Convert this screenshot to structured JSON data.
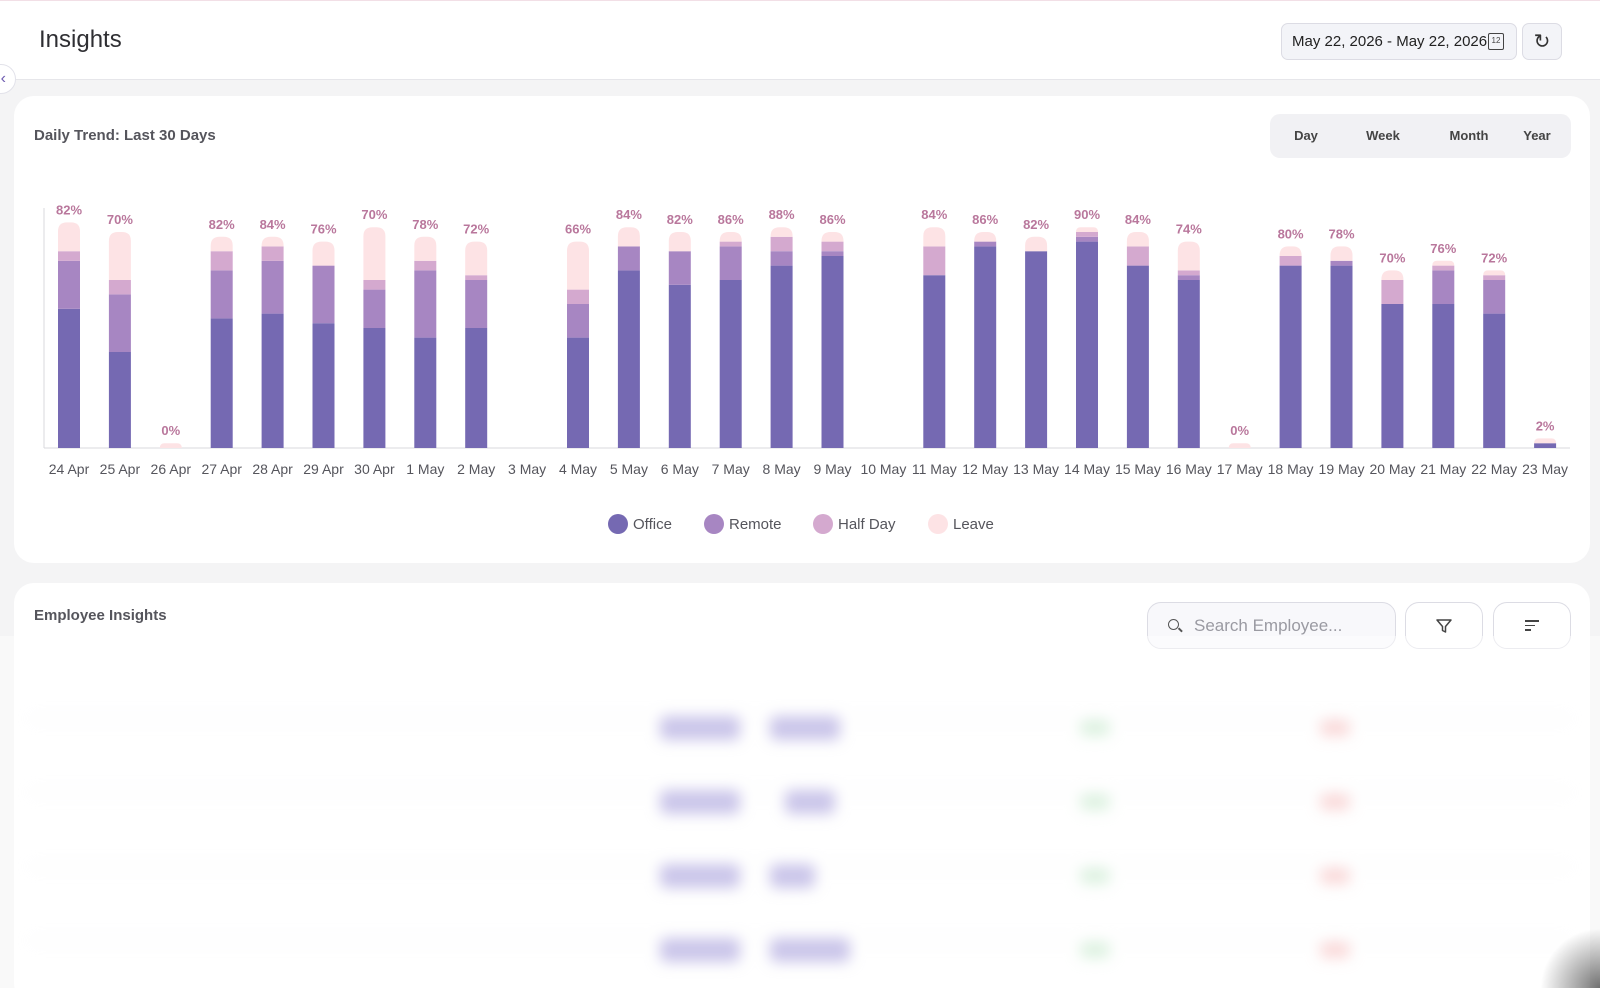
{
  "header": {
    "title": "Insights",
    "date_range": "May 22, 2026 - May 22, 2026",
    "calendar_day": "12"
  },
  "trend": {
    "title": "Daily Trend: Last 30 Days",
    "tabs": [
      {
        "label": "Day",
        "active": true
      },
      {
        "label": "Week",
        "active": false
      },
      {
        "label": "Month",
        "active": false
      },
      {
        "label": "Year",
        "active": false
      }
    ]
  },
  "employee": {
    "title": "Employee Insights",
    "search_placeholder": "Search Employee..."
  },
  "icons": {
    "collapse": "chevron-left-icon",
    "calendar": "calendar-icon",
    "refresh": "refresh-icon",
    "search": "search-icon",
    "filter": "filter-icon",
    "sort": "sort-icon"
  },
  "colors": {
    "office": "#7569b2",
    "remote": "#a786c2",
    "half_day": "#d4a9cf",
    "leave": "#fde3e5",
    "label": "#b9779c",
    "accent": "#6d5bb0"
  },
  "chart_data": {
    "type": "bar",
    "stacked": true,
    "categories": [
      "24 Apr",
      "25 Apr",
      "26 Apr",
      "27 Apr",
      "28 Apr",
      "29 Apr",
      "30 Apr",
      "1 May",
      "2 May",
      "3 May",
      "4 May",
      "5 May",
      "6 May",
      "7 May",
      "8 May",
      "9 May",
      "10 May",
      "11 May",
      "12 May",
      "13 May",
      "14 May",
      "15 May",
      "16 May",
      "17 May",
      "18 May",
      "19 May",
      "20 May",
      "21 May",
      "22 May",
      "23 May"
    ],
    "labels": [
      "82%",
      "70%",
      "0%",
      "82%",
      "84%",
      "76%",
      "70%",
      "78%",
      "72%",
      "",
      "66%",
      "84%",
      "82%",
      "86%",
      "88%",
      "86%",
      "",
      "84%",
      "86%",
      "82%",
      "90%",
      "84%",
      "74%",
      "0%",
      "80%",
      "78%",
      "70%",
      "76%",
      "72%",
      "2%"
    ],
    "series": [
      {
        "name": "Office",
        "values": [
          58,
          40,
          0,
          54,
          56,
          52,
          50,
          46,
          50,
          0,
          46,
          74,
          68,
          70,
          76,
          80,
          0,
          72,
          84,
          82,
          86,
          76,
          70,
          0,
          76,
          76,
          60,
          60,
          56,
          2
        ]
      },
      {
        "name": "Remote",
        "values": [
          20,
          24,
          0,
          20,
          22,
          24,
          16,
          28,
          20,
          0,
          14,
          10,
          14,
          14,
          6,
          2,
          0,
          0,
          2,
          0,
          2,
          0,
          2,
          0,
          0,
          2,
          0,
          14,
          14,
          0
        ]
      },
      {
        "name": "Half Day",
        "values": [
          4,
          6,
          0,
          8,
          6,
          0,
          4,
          4,
          2,
          0,
          6,
          0,
          0,
          2,
          6,
          4,
          0,
          12,
          0,
          0,
          2,
          8,
          2,
          0,
          4,
          0,
          10,
          2,
          2,
          0
        ]
      },
      {
        "name": "Leave",
        "values": [
          12,
          20,
          2,
          6,
          4,
          10,
          22,
          10,
          14,
          0,
          20,
          8,
          8,
          4,
          4,
          4,
          0,
          8,
          4,
          6,
          2,
          6,
          12,
          2,
          4,
          6,
          4,
          2,
          2,
          2
        ]
      }
    ],
    "ylim": [
      0,
      100
    ]
  }
}
